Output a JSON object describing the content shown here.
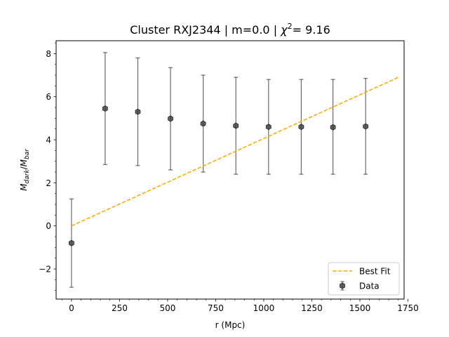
{
  "chart_data": {
    "type": "scatter",
    "title": {
      "prefix": "Cluster RXJ2344 | m=0.0 | ",
      "chi": "χ",
      "sup": "2",
      "suffix": "= 9.16"
    },
    "xlabel": "r (Mpc)",
    "ylabel": {
      "main1": "M",
      "sub1": "dark",
      "slash": "/",
      "main2": "M",
      "sub2": "bar"
    },
    "xlim": [
      -80,
      1730
    ],
    "ylim": [
      -3.4,
      8.6
    ],
    "xticks": [
      0,
      250,
      500,
      750,
      1000,
      1250,
      1500,
      1750
    ],
    "yticks": [
      -2,
      0,
      2,
      4,
      6,
      8
    ],
    "series": [
      {
        "name": "Data",
        "kind": "errorbar",
        "color": "#3a3a3a",
        "points": [
          {
            "x": 0,
            "y": -0.8,
            "yerr_low": -2.85,
            "yerr_high": 1.25
          },
          {
            "x": 175,
            "y": 5.45,
            "yerr_low": 2.85,
            "yerr_high": 8.05
          },
          {
            "x": 345,
            "y": 5.3,
            "yerr_low": 2.8,
            "yerr_high": 7.8
          },
          {
            "x": 515,
            "y": 4.98,
            "yerr_low": 2.6,
            "yerr_high": 7.35
          },
          {
            "x": 685,
            "y": 4.75,
            "yerr_low": 2.5,
            "yerr_high": 7.0
          },
          {
            "x": 855,
            "y": 4.65,
            "yerr_low": 2.4,
            "yerr_high": 6.9
          },
          {
            "x": 1025,
            "y": 4.6,
            "yerr_low": 2.4,
            "yerr_high": 6.8
          },
          {
            "x": 1195,
            "y": 4.6,
            "yerr_low": 2.4,
            "yerr_high": 6.8
          },
          {
            "x": 1360,
            "y": 4.58,
            "yerr_low": 2.4,
            "yerr_high": 6.8
          },
          {
            "x": 1530,
            "y": 4.62,
            "yerr_low": 2.4,
            "yerr_high": 6.85
          }
        ]
      },
      {
        "name": "Best Fit",
        "kind": "line",
        "style": "dashed",
        "color": "#ffa500",
        "x": [
          0,
          1700
        ],
        "y": [
          0.0,
          6.9
        ]
      }
    ],
    "legend": {
      "position": "bottom-right",
      "entries": [
        "Best Fit",
        "Data"
      ]
    },
    "grid": false
  }
}
